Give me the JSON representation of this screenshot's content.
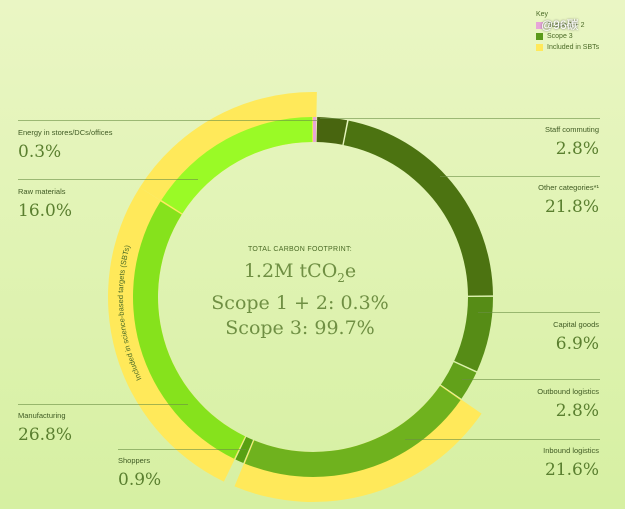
{
  "legend": {
    "title": "Key",
    "items": [
      {
        "label": "Scope 1 + 2",
        "color": "#e7a6d8"
      },
      {
        "label": "Scope 3",
        "color": "#5a9a1a"
      },
      {
        "label": "Included in SBTs",
        "color": "#ffe95a"
      }
    ]
  },
  "watermark": "@96碳",
  "center": {
    "title": "TOTAL CARBON FOOTPRINT:",
    "total_main": "1.2M tCO",
    "total_sub": "2",
    "total_end": "e",
    "scope12": "Scope 1 + 2: 0.3%",
    "scope3": "Scope 3: 99.7%"
  },
  "sbt_label": "Included in science-based targets (SBTs)",
  "chart_data": {
    "type": "pie",
    "categories": [
      "Energy in stores/DCs/offices",
      "Staff commuting",
      "Other categories*¹",
      "Capital goods",
      "Outbound logistics",
      "Inbound logistics",
      "Shoppers",
      "Manufacturing",
      "Raw materials"
    ],
    "values": [
      0.3,
      2.8,
      21.8,
      6.9,
      2.8,
      21.6,
      0.9,
      26.8,
      16.0
    ],
    "display_values": [
      "0.3%",
      "2.8%",
      "21.8%",
      "6.9%",
      "2.8%",
      "21.6%",
      "0.9%",
      "26.8%",
      "16.0%"
    ],
    "colors": [
      "#e7a6d8",
      "#48650f",
      "#4c7311",
      "#568c16",
      "#62a11a",
      "#6fb21e",
      "#58a012",
      "#86e21c",
      "#9afa26"
    ],
    "sbt_included": [
      true,
      false,
      false,
      false,
      false,
      true,
      false,
      true,
      true
    ],
    "sbt_color": "#ffe95a"
  }
}
